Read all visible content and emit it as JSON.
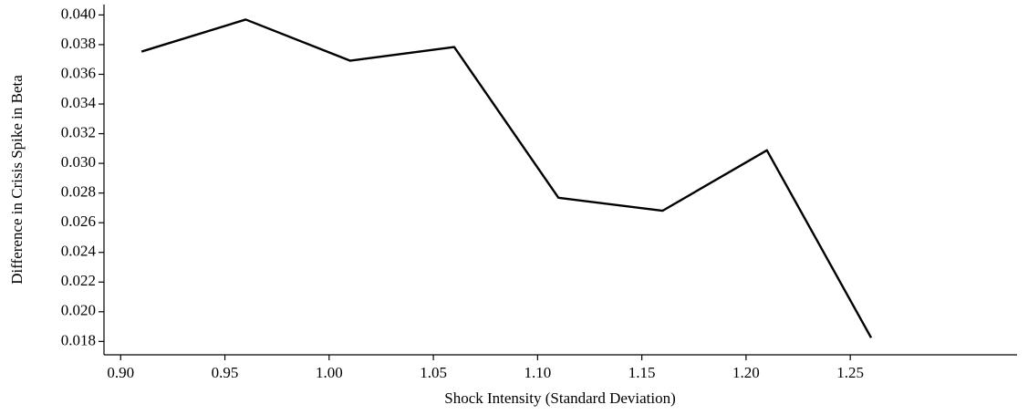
{
  "chart_data": {
    "type": "line",
    "xlabel": "Shock Intensity (Standard Deviation)",
    "ylabel": "Difference in Crisis Spike in Beta",
    "x": [
      0.91,
      0.96,
      1.01,
      1.06,
      1.11,
      1.16,
      1.21,
      1.26
    ],
    "series": [
      {
        "color": "#000000",
        "values": [
          0.03753,
          0.03969,
          0.03692,
          0.03784,
          0.02768,
          0.02681,
          0.03088,
          0.01825
        ]
      }
    ],
    "xlim": [
      0.892,
      1.33
    ],
    "ylim": [
      0.0171,
      0.0407
    ],
    "xticks": [
      {
        "value": 0.9,
        "label": "0.90"
      },
      {
        "value": 0.95,
        "label": "0.95"
      },
      {
        "value": 1.0,
        "label": "1.00"
      },
      {
        "value": 1.05,
        "label": "1.05"
      },
      {
        "value": 1.1,
        "label": "1.10"
      },
      {
        "value": 1.15,
        "label": "1.15"
      },
      {
        "value": 1.2,
        "label": "1.20"
      },
      {
        "value": 1.25,
        "label": "1.25"
      }
    ],
    "yticks": [
      {
        "value": 0.018,
        "label": "0.018"
      },
      {
        "value": 0.02,
        "label": "0.020"
      },
      {
        "value": 0.022,
        "label": "0.022"
      },
      {
        "value": 0.024,
        "label": "0.024"
      },
      {
        "value": 0.026,
        "label": "0.026"
      },
      {
        "value": 0.028,
        "label": "0.028"
      },
      {
        "value": 0.03,
        "label": "0.030"
      },
      {
        "value": 0.032,
        "label": "0.032"
      },
      {
        "value": 0.034,
        "label": "0.034"
      },
      {
        "value": 0.036,
        "label": "0.036"
      },
      {
        "value": 0.038,
        "label": "0.038"
      },
      {
        "value": 0.04,
        "label": "0.040"
      }
    ]
  }
}
